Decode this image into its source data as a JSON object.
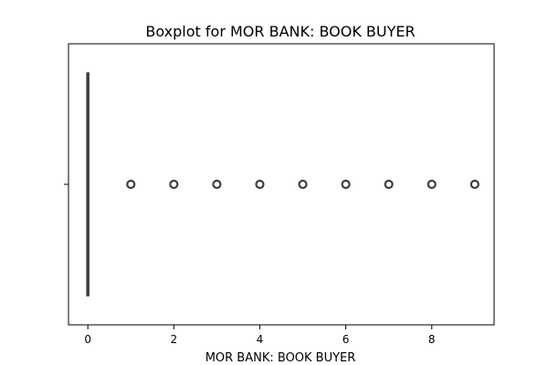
{
  "chart_data": {
    "type": "boxplot",
    "title": "Boxplot for MOR BANK: BOOK BUYER",
    "xlabel": "MOR BANK: BOOK BUYER",
    "ylabel": "",
    "xlim": [
      -0.45,
      9.45
    ],
    "xticks": [
      0,
      2,
      4,
      6,
      8
    ],
    "xtick_labels": [
      "0",
      "2",
      "4",
      "6",
      "8"
    ],
    "box": {
      "q1": 0,
      "median": 0,
      "q3": 0,
      "whisker_low": 0,
      "whisker_high": 0
    },
    "outliers": [
      1,
      2,
      3,
      4,
      5,
      6,
      7,
      8,
      9
    ],
    "grid": false,
    "colors": {
      "box_edge": "#3f3f3f",
      "outlier_edge": "#3f3f3f",
      "frame": "#000000"
    }
  }
}
